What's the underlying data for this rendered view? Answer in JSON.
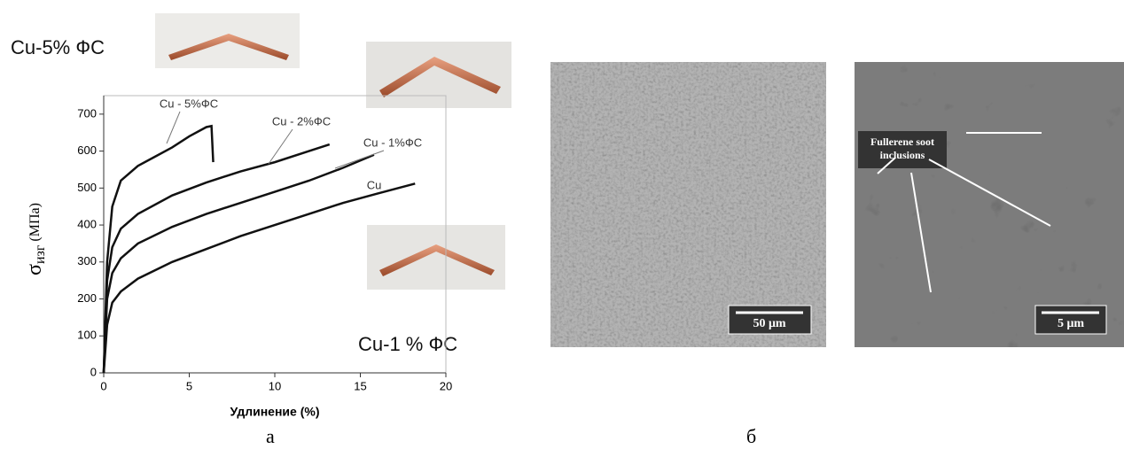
{
  "chart_data": {
    "type": "line",
    "xlabel": "Удлинение (%)",
    "ylabel_symbol": "σ",
    "ylabel_subscript": "изг",
    "ylabel_unit": "(МПа)",
    "xlim": [
      0,
      20
    ],
    "xticks": [
      0,
      5,
      10,
      15,
      20
    ],
    "ylim": [
      0,
      750
    ],
    "yticks": [
      0,
      100,
      200,
      300,
      400,
      500,
      600,
      700
    ],
    "series": [
      {
        "name": "Cu - 5%ФС",
        "color": "#111111",
        "x": [
          0,
          0.2,
          0.5,
          1,
          2,
          3,
          4,
          5,
          6,
          6.3,
          6.4
        ],
        "values": [
          0,
          300,
          450,
          520,
          560,
          585,
          610,
          640,
          665,
          668,
          570
        ]
      },
      {
        "name": "Cu - 2%ФС",
        "color": "#111111",
        "x": [
          0,
          0.2,
          0.5,
          1,
          2,
          4,
          6,
          8,
          10,
          12,
          13.2
        ],
        "values": [
          0,
          250,
          340,
          390,
          430,
          480,
          515,
          545,
          570,
          600,
          618
        ]
      },
      {
        "name": "Cu - 1%ФС",
        "color": "#111111",
        "x": [
          0,
          0.2,
          0.5,
          1,
          2,
          4,
          6,
          8,
          10,
          12,
          14,
          15.8
        ],
        "values": [
          0,
          200,
          270,
          310,
          350,
          395,
          430,
          460,
          490,
          520,
          555,
          590
        ]
      },
      {
        "name": "Cu",
        "color": "#111111",
        "x": [
          0,
          0.2,
          0.5,
          1,
          2,
          4,
          6,
          8,
          10,
          12,
          14,
          16,
          18.2
        ],
        "values": [
          0,
          130,
          190,
          220,
          255,
          300,
          335,
          370,
          400,
          430,
          460,
          485,
          512
        ]
      }
    ]
  },
  "figure": {
    "sample_top": "Cu-5% ФС",
    "sample_bottom": "Cu-1 % ФС",
    "panel_a": "а",
    "panel_b": "б",
    "sem_scale_1": "50 μm",
    "sem_scale_2": "5 μm",
    "sem_annotation": "Fullerene soot inclusions"
  }
}
